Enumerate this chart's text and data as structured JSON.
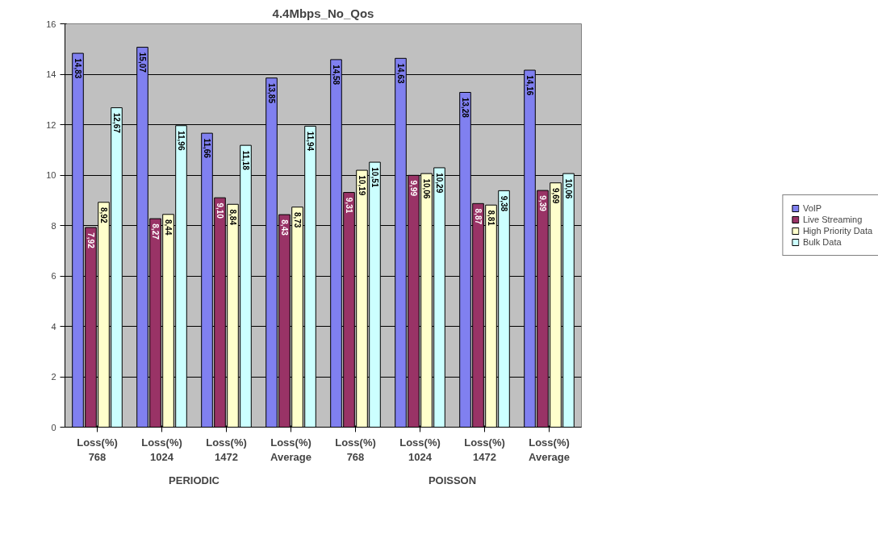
{
  "chart_data": {
    "type": "bar",
    "title": "4.4Mbps_No_Qos",
    "categories": [
      "Loss(%)\n768",
      "Loss(%)\n1024",
      "Loss(%)\n1472",
      "Loss(%)\nAverage",
      "Loss(%)\n768",
      "Loss(%)\n1024",
      "Loss(%)\n1472",
      "Loss(%)\nAverage"
    ],
    "series": [
      {
        "name": "VoIP",
        "color": "#8080f0",
        "values": [
          14.83,
          15.07,
          11.66,
          13.85,
          14.58,
          14.63,
          13.28,
          14.16
        ],
        "value_labels": [
          "14,83",
          "15,07",
          "11,66",
          "13,85",
          "14,58",
          "14,63",
          "13,28",
          "14,16"
        ]
      },
      {
        "name": "Live Streaming",
        "color": "#993366",
        "values": [
          7.92,
          8.27,
          9.1,
          8.43,
          9.31,
          9.99,
          8.87,
          9.39
        ],
        "value_labels": [
          "7,92",
          "8,27",
          "9,10",
          "8,43",
          "9,31",
          "9,99",
          "8,87",
          "9,39"
        ]
      },
      {
        "name": "High Priority Data",
        "color": "#ffffcc",
        "values": [
          8.92,
          8.44,
          8.84,
          8.73,
          10.19,
          10.06,
          8.81,
          9.69
        ],
        "value_labels": [
          "8,92",
          "8,44",
          "8,84",
          "8,73",
          "10,19",
          "10,06",
          "8,81",
          "9,69"
        ]
      },
      {
        "name": "Bulk Data",
        "color": "#ccffff",
        "values": [
          12.67,
          11.96,
          11.18,
          11.94,
          10.51,
          10.29,
          9.38,
          10.06
        ],
        "value_labels": [
          "12,67",
          "11,96",
          "11,18",
          "11,94",
          "10,51",
          "10,29",
          "9,38",
          "10,06"
        ]
      }
    ],
    "annotations": [
      "PERIODIC",
      "POISSON"
    ],
    "ylim": [
      0,
      16
    ],
    "yticks": [
      0,
      2,
      4,
      6,
      8,
      10,
      12,
      14,
      16
    ],
    "grid": "y",
    "legend": "right"
  }
}
